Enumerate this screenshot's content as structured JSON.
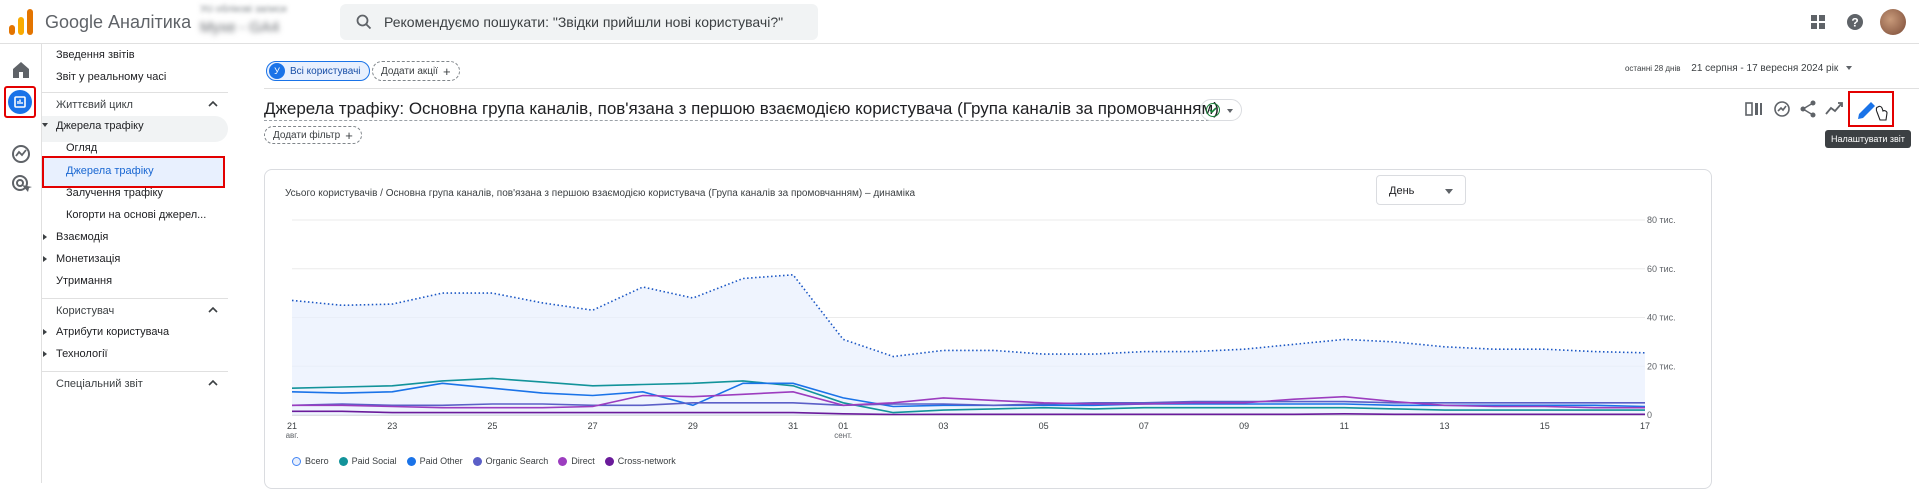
{
  "app": {
    "title": "Google Аналітика",
    "account_line1": "Усі облікові записи",
    "account_line2": "Myxe - GA4"
  },
  "search": {
    "placeholder": "Рекомендуємо пошукати: \"Звідки прийшли нові користувачі?\""
  },
  "nav": {
    "top_items": [
      "Зведення звітів",
      "Звіт у реальному часі"
    ],
    "lifecycle": {
      "label": "Життєвий цикл",
      "acquisition": {
        "label": "Джерела трафіку",
        "children": [
          "Огляд",
          "Джерела трафіку",
          "Залучення трафіку",
          "Когорти на основі джерел..."
        ]
      },
      "others": [
        "Взаємодія",
        "Монетизація"
      ],
      "retention": "Утримання"
    },
    "user": {
      "label": "Користувач",
      "items": [
        "Атрибути користувача",
        "Технології"
      ]
    },
    "custom": {
      "label": "Спеціальний звіт"
    }
  },
  "main": {
    "segment": {
      "letter": "У",
      "label": "Всі користувачі"
    },
    "add_comparison": "Додати акції",
    "date_range": {
      "preset": "останні 28 днів",
      "value": "21 серпня - 17 вересня 2024 рік"
    },
    "title": "Джерела трафіку: Основна група каналів, пов'язана з першою взаємодією користувача (Група каналів за промовчанням)",
    "add_filter": "Додати фільтр",
    "tooltip": "Налаштувати звіт"
  },
  "chart": {
    "title": "Усього користувачів / Основна група каналів, пов'язана з першою взаємодією користувача (Група каналів за промовчанням) – динаміка",
    "granularity": "День"
  },
  "chart_data": {
    "type": "line",
    "title": "Усього користувачів / Основна група каналів, пов'язана з першою взаємодією користувача (Група каналів за промовчанням) – динаміка",
    "x": [
      "21",
      "22",
      "23",
      "24",
      "25",
      "26",
      "27",
      "28",
      "29",
      "30",
      "31",
      "01",
      "02",
      "03",
      "04",
      "05",
      "06",
      "07",
      "08",
      "09",
      "10",
      "11",
      "12",
      "13",
      "14",
      "15",
      "16",
      "17"
    ],
    "x_tick_labels": [
      "21",
      "23",
      "25",
      "27",
      "29",
      "31",
      "01",
      "03",
      "05",
      "07",
      "09",
      "11",
      "13",
      "15",
      "17"
    ],
    "x_month_labels": {
      "21": "авг.",
      "01": "сент."
    },
    "y_ticks": [
      "0",
      "20 тис.",
      "40 тис.",
      "60 тис.",
      "80 тис."
    ],
    "ylim": [
      0,
      80000
    ],
    "y_axis_position": "right",
    "grid": true,
    "legend_position": "bottom-left",
    "series": [
      {
        "name": "Всего",
        "color": "#4285f4",
        "style": "dotted-area",
        "values": [
          47000,
          45000,
          45500,
          50000,
          50000,
          46000,
          43000,
          52500,
          48000,
          56000,
          57500,
          31000,
          24000,
          26500,
          26500,
          25000,
          25000,
          26000,
          26000,
          27000,
          29000,
          31000,
          30000,
          28000,
          27000,
          27000,
          26000,
          25500
        ]
      },
      {
        "name": "Paid Social",
        "color": "#12939a",
        "values": [
          11000,
          11500,
          12000,
          14000,
          15000,
          13500,
          12000,
          12500,
          13000,
          14000,
          12000,
          5000,
          1000,
          2000,
          2500,
          3000,
          2500,
          3000,
          3000,
          3000,
          3000,
          3000,
          2500,
          2000,
          2000,
          2000,
          2000,
          2000
        ]
      },
      {
        "name": "Paid Other",
        "color": "#1a73e8",
        "values": [
          9500,
          9000,
          9500,
          13000,
          11000,
          9000,
          8000,
          9500,
          4000,
          13000,
          13000,
          7000,
          3500,
          4000,
          4000,
          4000,
          4000,
          4500,
          4500,
          4500,
          4500,
          4500,
          4000,
          4000,
          4000,
          4000,
          4000,
          3500
        ]
      },
      {
        "name": "Organic Search",
        "color": "#5b5fc7",
        "values": [
          4000,
          4500,
          4000,
          4000,
          4500,
          4500,
          4000,
          4000,
          5000,
          5000,
          5000,
          4000,
          4500,
          4500,
          4000,
          4500,
          5000,
          5000,
          5500,
          5500,
          5500,
          5500,
          5000,
          5000,
          5000,
          5000,
          5000,
          5000
        ]
      },
      {
        "name": "Direct",
        "color": "#9c3dbf",
        "values": [
          4000,
          4000,
          3500,
          3000,
          3000,
          3000,
          3500,
          8000,
          7500,
          8500,
          9500,
          4000,
          5000,
          7000,
          6000,
          5000,
          4500,
          4500,
          5000,
          5000,
          6500,
          7500,
          5500,
          4000,
          3500,
          3500,
          3000,
          3000
        ]
      },
      {
        "name": "Cross-network",
        "color": "#6a1b9a",
        "values": [
          1500,
          1500,
          1000,
          1000,
          1000,
          1000,
          1000,
          1000,
          1000,
          1000,
          1000,
          500,
          200,
          300,
          300,
          300,
          300,
          300,
          300,
          300,
          300,
          500,
          300,
          300,
          300,
          300,
          300,
          300
        ]
      }
    ]
  }
}
